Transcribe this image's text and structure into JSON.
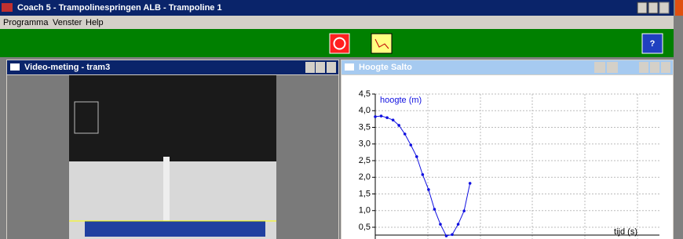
{
  "window_title": "Coach 5 - Trampolinespringen ALB - Trampoline 1",
  "menu": [
    "Programma",
    "Venster",
    "Help"
  ],
  "video_window": {
    "title": "Video-meting - tram3"
  },
  "graph_window": {
    "title": "Hoogte Salto",
    "chart_data": {
      "type": "line",
      "x": [
        0,
        0.04,
        0.08,
        0.12,
        0.16,
        0.2,
        0.24,
        0.28,
        0.32,
        0.36,
        0.4,
        0.44,
        0.48,
        0.52,
        0.56,
        0.6,
        0.64
      ],
      "series": [
        {
          "name": "hoogte (m)",
          "color": "#1010e0",
          "values": [
            3.82,
            3.84,
            3.79,
            3.72,
            3.56,
            3.3,
            2.97,
            2.62,
            2.08,
            1.63,
            1.04,
            0.59,
            0.24,
            0.28,
            0.59,
            0.99,
            1.82
          ]
        }
      ],
      "xlabel": "tijd (s)",
      "xlim": [
        0,
        1.92
      ],
      "ylim": [
        0,
        4.5
      ],
      "yticks": [
        {
          "value": 0.5,
          "label": "0,5"
        },
        {
          "value": 1,
          "label": "1,0"
        },
        {
          "value": 1.5,
          "label": "1,5"
        },
        {
          "value": 2,
          "label": "2,0"
        },
        {
          "value": 2.5,
          "label": "2,5"
        },
        {
          "value": 3,
          "label": "3,0"
        },
        {
          "value": 3.5,
          "label": "3,5"
        },
        {
          "value": 4,
          "label": "4,0"
        },
        {
          "value": 4.5,
          "label": "4,5"
        }
      ],
      "grid": true
    }
  }
}
